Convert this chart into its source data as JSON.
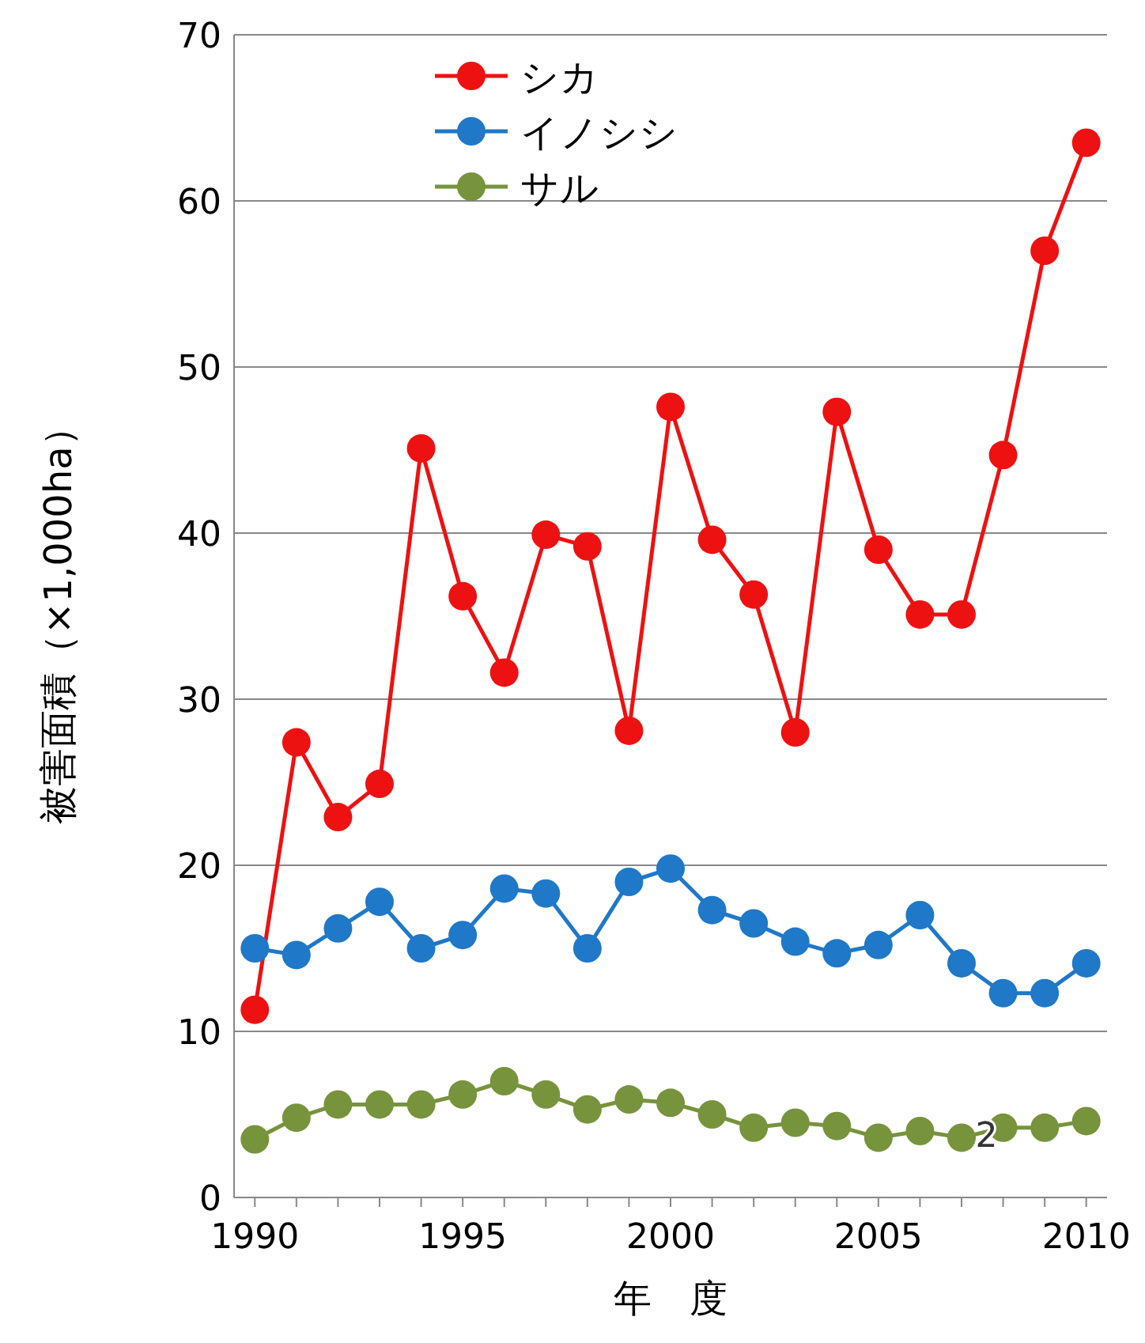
{
  "chart_data": {
    "type": "line",
    "xlabel": "年　度",
    "ylabel": "被害面積（×1,000ha）",
    "x": [
      1990,
      1991,
      1992,
      1993,
      1994,
      1995,
      1996,
      1997,
      1998,
      1999,
      2000,
      2001,
      2002,
      2003,
      2004,
      2005,
      2006,
      2007,
      2008,
      2009,
      2010
    ],
    "series": [
      {
        "name": "シカ",
        "color": "#ee1111",
        "values": [
          11.3,
          27.4,
          22.9,
          24.9,
          45.1,
          36.2,
          31.6,
          39.9,
          39.2,
          28.1,
          47.6,
          39.6,
          36.3,
          28.0,
          47.3,
          39.0,
          35.1,
          35.1,
          44.7,
          57.0,
          63.5
        ]
      },
      {
        "name": "イノシシ",
        "color": "#1f78c8",
        "values": [
          15.0,
          14.6,
          16.2,
          17.8,
          15.0,
          15.8,
          18.6,
          18.3,
          15.0,
          19.0,
          19.8,
          17.3,
          16.5,
          15.4,
          14.7,
          15.2,
          17.0,
          14.1,
          12.3,
          12.3,
          14.1
        ]
      },
      {
        "name": "サル",
        "color": "#77933c",
        "values": [
          3.5,
          4.8,
          5.6,
          5.6,
          5.6,
          6.2,
          7.0,
          6.2,
          5.3,
          5.9,
          5.7,
          5.0,
          4.2,
          4.5,
          4.3,
          3.6,
          4.0,
          3.6,
          4.2,
          4.2,
          4.6
        ]
      }
    ],
    "xlim": [
      1989.5,
      2010.5
    ],
    "ylim": [
      0,
      70
    ],
    "xticks": [
      1990,
      {
        "value": 1991,
        "label": null
      },
      {
        "value": 1992,
        "label": null
      },
      {
        "value": 1993,
        "label": null
      },
      {
        "value": 1994,
        "label": null
      },
      1995,
      {
        "value": 1996,
        "label": null
      },
      {
        "value": 1997,
        "label": null
      },
      {
        "value": 1998,
        "label": null
      },
      {
        "value": 1999,
        "label": null
      },
      2000,
      {
        "value": 2001,
        "label": null
      },
      {
        "value": 2002,
        "label": null
      },
      {
        "value": 2003,
        "label": null
      },
      {
        "value": 2004,
        "label": null
      },
      2005,
      {
        "value": 2006,
        "label": null
      },
      {
        "value": 2007,
        "label": null
      },
      {
        "value": 2008,
        "label": null
      },
      {
        "value": 2009,
        "label": null
      },
      2010
    ],
    "yticks": [
      0,
      10,
      20,
      30,
      40,
      50,
      60,
      70
    ],
    "annotations": [
      {
        "text": "2",
        "x": 2007.6,
        "y": 3.8
      }
    ],
    "grid": "y",
    "legend": "top left",
    "marker": "circle",
    "line_style": "solid"
  }
}
